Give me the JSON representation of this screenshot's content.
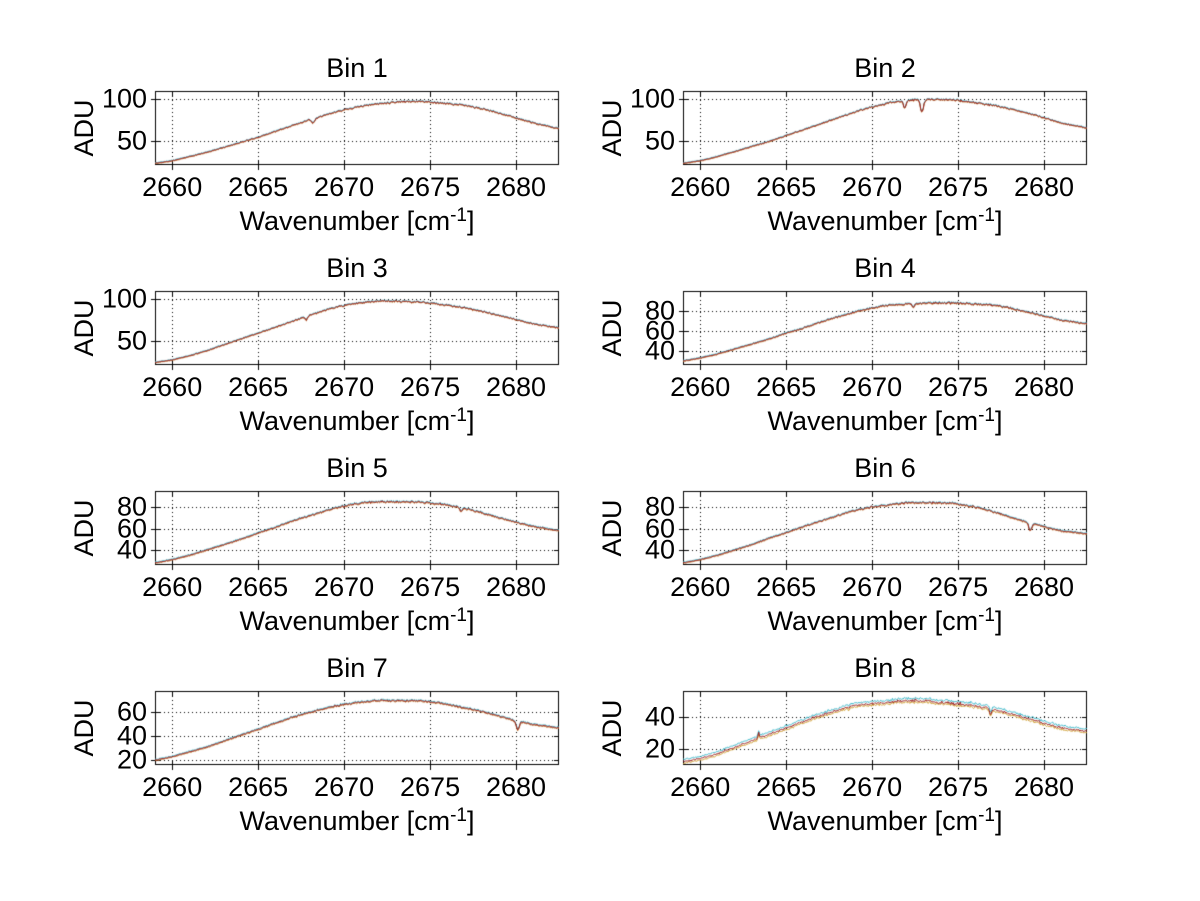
{
  "figure": {
    "background": "#ffffff",
    "ylabel": "ADU",
    "xlabel": {
      "base": "Wavenumber [cm",
      "sup": "-1",
      "close": "]"
    },
    "grid_style": "dotted",
    "axis_color": "#000000",
    "text_color": "#000000"
  },
  "chart_data": [
    {
      "type": "line",
      "title": "Bin 1",
      "xlabel": "Wavenumber [cm^-1]",
      "ylabel": "ADU",
      "xlim": [
        2659,
        2682.5
      ],
      "ylim": [
        22,
        110
      ],
      "xticks": [
        2660,
        2665,
        2670,
        2675,
        2680
      ],
      "yticks": [
        50,
        100
      ],
      "grid": true,
      "series": [
        {
          "name": "trace-cyan",
          "color": "#3ab7c9",
          "offset": 0.55
        },
        {
          "name": "trace-orange",
          "color": "#c07a2a",
          "offset": -0.55
        },
        {
          "name": "trace-darkred",
          "color": "#9a1f24",
          "offset": 0
        }
      ],
      "curve_points": [
        [
          2659,
          24
        ],
        [
          2660,
          27
        ],
        [
          2661,
          32
        ],
        [
          2662,
          37
        ],
        [
          2663,
          43
        ],
        [
          2664,
          49
        ],
        [
          2665,
          55
        ],
        [
          2666,
          62
        ],
        [
          2667,
          69
        ],
        [
          2668,
          76
        ],
        [
          2669,
          82
        ],
        [
          2670,
          88
        ],
        [
          2671,
          92
        ],
        [
          2672,
          95
        ],
        [
          2673,
          97
        ],
        [
          2674,
          98
        ],
        [
          2675,
          97
        ],
        [
          2676,
          95
        ],
        [
          2677,
          93
        ],
        [
          2678,
          89
        ],
        [
          2679,
          84
        ],
        [
          2680,
          78
        ],
        [
          2681,
          72
        ],
        [
          2682.5,
          65
        ]
      ],
      "features": [
        {
          "x": 2668.2,
          "depth": 5,
          "width": 0.12
        }
      ],
      "noise_amp": 1.3,
      "series_jitter": 0.3,
      "noise_seed": 11
    },
    {
      "type": "line",
      "title": "Bin 2",
      "xlabel": "Wavenumber [cm^-1]",
      "ylabel": "ADU",
      "xlim": [
        2659,
        2682.5
      ],
      "ylim": [
        22,
        110
      ],
      "xticks": [
        2660,
        2665,
        2670,
        2675,
        2680
      ],
      "yticks": [
        50,
        100
      ],
      "grid": true,
      "series": [
        {
          "name": "trace-cyan",
          "color": "#3ab7c9",
          "offset": 0.55
        },
        {
          "name": "trace-orange",
          "color": "#c07a2a",
          "offset": -0.55
        },
        {
          "name": "trace-darkred",
          "color": "#9a1f24",
          "offset": 0
        }
      ],
      "curve_points": [
        [
          2659,
          24
        ],
        [
          2660,
          27
        ],
        [
          2661,
          32
        ],
        [
          2662,
          38
        ],
        [
          2663,
          44
        ],
        [
          2664,
          50
        ],
        [
          2665,
          57
        ],
        [
          2666,
          64
        ],
        [
          2667,
          71
        ],
        [
          2668,
          78
        ],
        [
          2669,
          85
        ],
        [
          2670,
          91
        ],
        [
          2671,
          96
        ],
        [
          2672,
          99
        ],
        [
          2673,
          100
        ],
        [
          2674,
          100
        ],
        [
          2675,
          99
        ],
        [
          2676,
          96
        ],
        [
          2677,
          93
        ],
        [
          2678,
          89
        ],
        [
          2679,
          84
        ],
        [
          2680,
          78
        ],
        [
          2681,
          72
        ],
        [
          2682.5,
          66
        ]
      ],
      "features": [
        {
          "x": 2671.9,
          "depth": 9,
          "width": 0.1
        },
        {
          "x": 2672.9,
          "depth": 15,
          "width": 0.12
        }
      ],
      "noise_amp": 1.3,
      "series_jitter": 0.3,
      "noise_seed": 23
    },
    {
      "type": "line",
      "title": "Bin 3",
      "xlabel": "Wavenumber [cm^-1]",
      "ylabel": "ADU",
      "xlim": [
        2659,
        2682.5
      ],
      "ylim": [
        22,
        110
      ],
      "xticks": [
        2660,
        2665,
        2670,
        2675,
        2680
      ],
      "yticks": [
        50,
        100
      ],
      "grid": true,
      "series": [
        {
          "name": "trace-cyan",
          "color": "#3ab7c9",
          "offset": 0.55
        },
        {
          "name": "trace-orange",
          "color": "#c07a2a",
          "offset": -0.55
        },
        {
          "name": "trace-darkred",
          "color": "#9a1f24",
          "offset": 0
        }
      ],
      "curve_points": [
        [
          2659,
          25
        ],
        [
          2660,
          28
        ],
        [
          2661,
          33
        ],
        [
          2662,
          39
        ],
        [
          2663,
          46
        ],
        [
          2664,
          53
        ],
        [
          2665,
          60
        ],
        [
          2666,
          67
        ],
        [
          2667,
          74
        ],
        [
          2668,
          81
        ],
        [
          2669,
          88
        ],
        [
          2670,
          93
        ],
        [
          2671,
          96
        ],
        [
          2672,
          98
        ],
        [
          2673,
          98
        ],
        [
          2674,
          97
        ],
        [
          2675,
          96
        ],
        [
          2676,
          93
        ],
        [
          2677,
          90
        ],
        [
          2678,
          86
        ],
        [
          2679,
          81
        ],
        [
          2680,
          76
        ],
        [
          2681,
          71
        ],
        [
          2682.5,
          66
        ]
      ],
      "features": [
        {
          "x": 2667.8,
          "depth": 4,
          "width": 0.1
        }
      ],
      "noise_amp": 1.3,
      "series_jitter": 0.3,
      "noise_seed": 37
    },
    {
      "type": "line",
      "title": "Bin 4",
      "xlabel": "Wavenumber [cm^-1]",
      "ylabel": "ADU",
      "xlim": [
        2659,
        2682.5
      ],
      "ylim": [
        26,
        100
      ],
      "xticks": [
        2660,
        2665,
        2670,
        2675,
        2680
      ],
      "yticks": [
        40,
        60,
        80
      ],
      "grid": true,
      "series": [
        {
          "name": "trace-cyan",
          "color": "#3ab7c9",
          "offset": 0.55
        },
        {
          "name": "trace-orange",
          "color": "#c07a2a",
          "offset": -0.55
        },
        {
          "name": "trace-darkred",
          "color": "#9a1f24",
          "offset": 0
        }
      ],
      "curve_points": [
        [
          2659,
          30
        ],
        [
          2660,
          33
        ],
        [
          2661,
          37
        ],
        [
          2662,
          42
        ],
        [
          2663,
          47
        ],
        [
          2664,
          52
        ],
        [
          2665,
          58
        ],
        [
          2666,
          63
        ],
        [
          2667,
          69
        ],
        [
          2668,
          74
        ],
        [
          2669,
          79
        ],
        [
          2670,
          83
        ],
        [
          2671,
          86
        ],
        [
          2672,
          87
        ],
        [
          2673,
          88
        ],
        [
          2674,
          88
        ],
        [
          2675,
          88
        ],
        [
          2676,
          87
        ],
        [
          2677,
          86
        ],
        [
          2678,
          83
        ],
        [
          2679,
          79
        ],
        [
          2680,
          75
        ],
        [
          2681,
          71
        ],
        [
          2682.5,
          67
        ]
      ],
      "features": [
        {
          "x": 2672.4,
          "depth": 4,
          "width": 0.08
        }
      ],
      "noise_amp": 1.1,
      "series_jitter": 0.3,
      "noise_seed": 51
    },
    {
      "type": "line",
      "title": "Bin 5",
      "xlabel": "Wavenumber [cm^-1]",
      "ylabel": "ADU",
      "xlim": [
        2659,
        2682.5
      ],
      "ylim": [
        26,
        95
      ],
      "xticks": [
        2660,
        2665,
        2670,
        2675,
        2680
      ],
      "yticks": [
        40,
        60,
        80
      ],
      "grid": true,
      "series": [
        {
          "name": "trace-cyan",
          "color": "#3ab7c9",
          "offset": 0.55
        },
        {
          "name": "trace-orange",
          "color": "#c07a2a",
          "offset": -0.55
        },
        {
          "name": "trace-darkred",
          "color": "#9a1f24",
          "offset": 0
        }
      ],
      "curve_points": [
        [
          2659,
          28
        ],
        [
          2660,
          31
        ],
        [
          2661,
          35
        ],
        [
          2662,
          40
        ],
        [
          2663,
          45
        ],
        [
          2664,
          50
        ],
        [
          2665,
          56
        ],
        [
          2666,
          61
        ],
        [
          2667,
          67
        ],
        [
          2668,
          72
        ],
        [
          2669,
          77
        ],
        [
          2670,
          81
        ],
        [
          2671,
          84
        ],
        [
          2672,
          85
        ],
        [
          2673,
          85
        ],
        [
          2674,
          85
        ],
        [
          2675,
          84
        ],
        [
          2676,
          82
        ],
        [
          2677,
          79
        ],
        [
          2678,
          75
        ],
        [
          2679,
          70
        ],
        [
          2680,
          66
        ],
        [
          2681,
          62
        ],
        [
          2682.5,
          58
        ]
      ],
      "features": [
        {
          "x": 2676.8,
          "depth": 4,
          "width": 0.1
        }
      ],
      "noise_amp": 1.1,
      "series_jitter": 0.3,
      "noise_seed": 67
    },
    {
      "type": "line",
      "title": "Bin 6",
      "xlabel": "Wavenumber [cm^-1]",
      "ylabel": "ADU",
      "xlim": [
        2659,
        2682.5
      ],
      "ylim": [
        26,
        95
      ],
      "xticks": [
        2660,
        2665,
        2670,
        2675,
        2680
      ],
      "yticks": [
        40,
        60,
        80
      ],
      "grid": true,
      "series": [
        {
          "name": "trace-cyan",
          "color": "#3ab7c9",
          "offset": 0.55
        },
        {
          "name": "trace-orange",
          "color": "#c07a2a",
          "offset": -0.55
        },
        {
          "name": "trace-darkred",
          "color": "#9a1f24",
          "offset": 0
        }
      ],
      "curve_points": [
        [
          2659,
          28
        ],
        [
          2660,
          31
        ],
        [
          2661,
          35
        ],
        [
          2662,
          40
        ],
        [
          2663,
          45
        ],
        [
          2664,
          51
        ],
        [
          2665,
          56
        ],
        [
          2666,
          62
        ],
        [
          2667,
          67
        ],
        [
          2668,
          72
        ],
        [
          2669,
          77
        ],
        [
          2670,
          80
        ],
        [
          2671,
          82
        ],
        [
          2672,
          84
        ],
        [
          2673,
          84
        ],
        [
          2674,
          84
        ],
        [
          2675,
          83
        ],
        [
          2676,
          80
        ],
        [
          2677,
          76
        ],
        [
          2678,
          71
        ],
        [
          2679,
          66
        ],
        [
          2680,
          62
        ],
        [
          2681,
          58
        ],
        [
          2682.5,
          55
        ]
      ],
      "features": [
        {
          "x": 2679.2,
          "depth": 7,
          "width": 0.12
        }
      ],
      "noise_amp": 1.1,
      "series_jitter": 0.3,
      "noise_seed": 83
    },
    {
      "type": "line",
      "title": "Bin 7",
      "xlabel": "Wavenumber [cm^-1]",
      "ylabel": "ADU",
      "xlim": [
        2659,
        2682.5
      ],
      "ylim": [
        16,
        78
      ],
      "xticks": [
        2660,
        2665,
        2670,
        2675,
        2680
      ],
      "yticks": [
        20,
        40,
        60
      ],
      "grid": true,
      "series": [
        {
          "name": "trace-cyan",
          "color": "#3ab7c9",
          "offset": 0.55
        },
        {
          "name": "trace-orange",
          "color": "#c07a2a",
          "offset": -0.55
        },
        {
          "name": "trace-darkred",
          "color": "#9a1f24",
          "offset": 0
        }
      ],
      "curve_points": [
        [
          2659,
          20
        ],
        [
          2660,
          23
        ],
        [
          2661,
          27
        ],
        [
          2662,
          31
        ],
        [
          2663,
          36
        ],
        [
          2664,
          41
        ],
        [
          2665,
          46
        ],
        [
          2666,
          51
        ],
        [
          2667,
          56
        ],
        [
          2668,
          60
        ],
        [
          2669,
          64
        ],
        [
          2670,
          67
        ],
        [
          2671,
          69
        ],
        [
          2672,
          70
        ],
        [
          2673,
          70
        ],
        [
          2674,
          70
        ],
        [
          2675,
          69
        ],
        [
          2676,
          67
        ],
        [
          2677,
          64
        ],
        [
          2678,
          61
        ],
        [
          2679,
          57
        ],
        [
          2680,
          53
        ],
        [
          2681,
          50
        ],
        [
          2682.5,
          47
        ]
      ],
      "features": [
        {
          "x": 2680.1,
          "depth": 7,
          "width": 0.12
        }
      ],
      "noise_amp": 0.9,
      "series_jitter": 0.3,
      "noise_seed": 97
    },
    {
      "type": "line",
      "title": "Bin 8",
      "xlabel": "Wavenumber [cm^-1]",
      "ylabel": "ADU",
      "xlim": [
        2659,
        2682.5
      ],
      "ylim": [
        10,
        56
      ],
      "xticks": [
        2660,
        2665,
        2670,
        2675,
        2680
      ],
      "yticks": [
        20,
        40
      ],
      "grid": true,
      "series": [
        {
          "name": "trace-cyan",
          "color": "#3ab7c9",
          "offset": 1.4
        },
        {
          "name": "trace-orange",
          "color": "#cfa032",
          "offset": -1.0
        },
        {
          "name": "trace-darkred",
          "color": "#9a1f24",
          "offset": 0
        }
      ],
      "curve_points": [
        [
          2659,
          12
        ],
        [
          2660,
          14
        ],
        [
          2661,
          17
        ],
        [
          2662,
          21
        ],
        [
          2663,
          25
        ],
        [
          2664,
          29
        ],
        [
          2665,
          33
        ],
        [
          2666,
          37
        ],
        [
          2667,
          41
        ],
        [
          2668,
          44
        ],
        [
          2669,
          47
        ],
        [
          2670,
          48
        ],
        [
          2671,
          49
        ],
        [
          2672,
          50
        ],
        [
          2673,
          50
        ],
        [
          2674,
          49
        ],
        [
          2675,
          48
        ],
        [
          2676,
          47
        ],
        [
          2677,
          45
        ],
        [
          2678,
          42
        ],
        [
          2679,
          39
        ],
        [
          2680,
          36
        ],
        [
          2681,
          33
        ],
        [
          2682.5,
          31
        ]
      ],
      "features": [
        {
          "x": 2663.4,
          "depth": -3.5,
          "width": 0.06
        },
        {
          "x": 2676.9,
          "depth": 4,
          "width": 0.08
        }
      ],
      "noise_amp": 0.9,
      "series_jitter": 0.55,
      "noise_seed": 113
    }
  ]
}
